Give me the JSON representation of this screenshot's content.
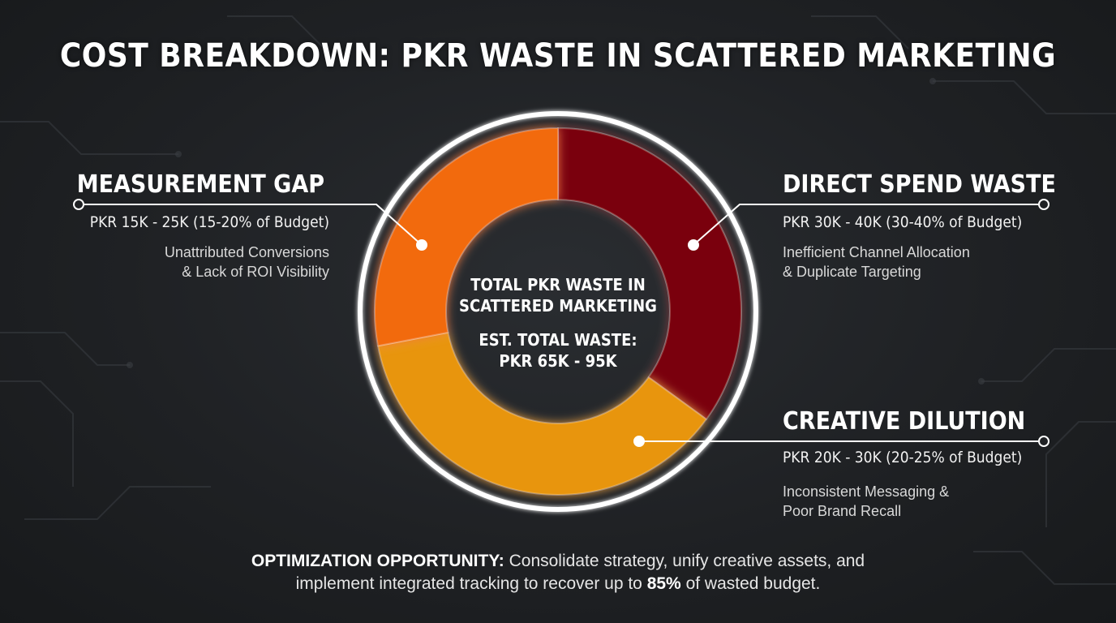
{
  "title": "COST BREAKDOWN: PKR WASTE IN SCATTERED MARKETING",
  "center": {
    "line1": "TOTAL PKR WASTE IN",
    "line2": "SCATTERED MARKETING",
    "line3": "EST. TOTAL WASTE:",
    "line4": "PKR 65K - 95K"
  },
  "segments": {
    "measurement": {
      "title": "MEASUREMENT GAP",
      "range": "PKR 15K - 25K (15-20% of Budget)",
      "desc1": "Unattributed Conversions",
      "desc2": "& Lack of ROI Visibility",
      "color": "#f26a10"
    },
    "direct": {
      "title": "DIRECT SPEND WASTE",
      "range": "PKR 30K - 40K (30-40% of Budget)",
      "desc1": "Inefficient Channel Allocation",
      "desc2": "& Duplicate Targeting",
      "color": "#7a0508"
    },
    "creative": {
      "title": "CREATIVE DILUTION",
      "range": "PKR 20K - 30K (20-25% of Budget)",
      "desc1": "Inconsistent Messaging &",
      "desc2": "Poor Brand Recall",
      "color": "#e8950f"
    }
  },
  "footer": {
    "lead": "OPTIMIZATION OPPORTUNITY:",
    "text1": " Consolidate strategy, unify creative assets, and",
    "text2": "implement integrated tracking to recover up to ",
    "pct": "85%",
    "text3": " of wasted budget."
  },
  "chart_data": {
    "type": "pie",
    "categories": [
      "Direct Spend Waste",
      "Creative Dilution",
      "Measurement Gap"
    ],
    "values": [
      35,
      37,
      28
    ],
    "colors": [
      "#7a0508",
      "#e8950f",
      "#f26a10"
    ],
    "title": "COST BREAKDOWN: PKR WASTE IN SCATTERED MARKETING"
  }
}
